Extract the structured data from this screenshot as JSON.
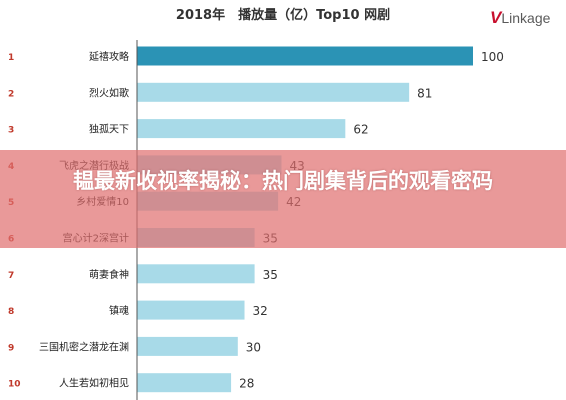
{
  "chart_data": {
    "type": "bar",
    "orientation": "horizontal",
    "title": "2018年　播放量（亿）Top10 网剧",
    "categories": [
      "延禧攻略",
      "烈火如歌",
      "独孤天下",
      "飞虎之潜行极战",
      "乡村爱情10",
      "宫心计2深宫计",
      "萌妻食神",
      "镇魂",
      "三国机密之潜龙在渊",
      "人生若如初相见"
    ],
    "ranks": [
      "1",
      "2",
      "3",
      "4",
      "5",
      "6",
      "7",
      "8",
      "9",
      "10"
    ],
    "values": [
      100,
      81,
      62,
      43,
      42,
      35,
      35,
      32,
      30,
      28
    ],
    "xlim": [
      0,
      100
    ],
    "grid": false,
    "colors": {
      "highlight": "#2b93b5",
      "bar": "#a8dae8",
      "rank": "#c0392b",
      "baseline": "#555555"
    }
  },
  "logo": {
    "v": "V",
    "rest": "Linkage"
  },
  "overlay": {
    "text": "韫最新收视率揭秘：热门剧集背后的观看密码"
  }
}
